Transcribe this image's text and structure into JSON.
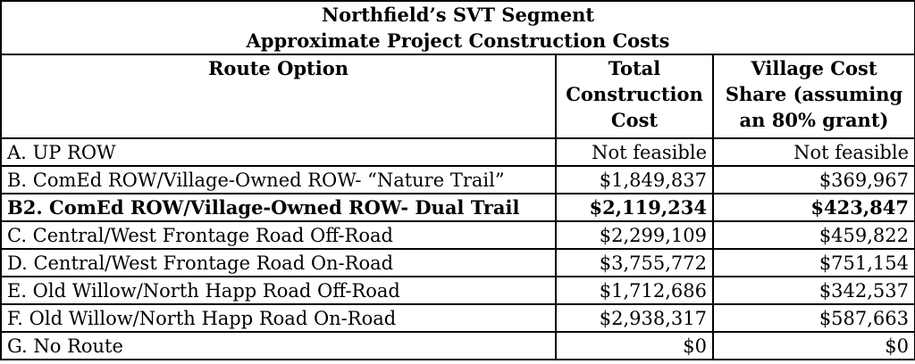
{
  "title_line1": "Northfield’s SVT Segment",
  "title_line2": "Approximate Project Construction Costs",
  "headers": [
    "Route Option",
    "Total Construction Cost",
    "Village Cost Share (assuming an 80% grant)"
  ],
  "rows": [
    {
      "route": "A. UP ROW",
      "total": "Not feasible",
      "village": "Not feasible"
    },
    {
      "route": "B. ComEd ROW/Village-Owned ROW- “Nature Trail”",
      "total": "$1,849,837",
      "village": "$369,967"
    },
    {
      "route": "B2. ComEd ROW/Village-Owned ROW- Dual Trail",
      "total": "$2,119,234",
      "village": "$423,847"
    },
    {
      "route": "C. Central/West Frontage Road Off-Road",
      "total": "$2,299,109",
      "village": "$459,822"
    },
    {
      "route": "D. Central/West Frontage Road On-Road",
      "total": "$3,755,772",
      "village": "$751,154"
    },
    {
      "route": "E. Old Willow/North Happ Road Off-Road",
      "total": "$1,712,686",
      "village": "$342,537"
    },
    {
      "route": "F. Old Willow/North Happ Road On-Road",
      "total": "$2,938,317",
      "village": "$587,663"
    },
    {
      "route": "G. No Route",
      "total": "$0",
      "village": "$0"
    }
  ]
}
